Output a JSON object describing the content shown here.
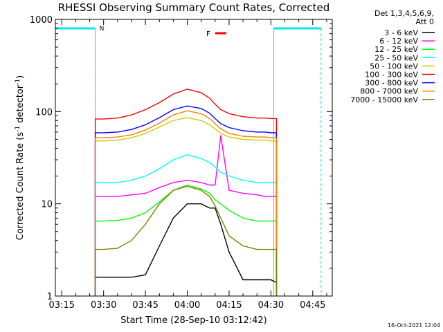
{
  "chart_data": {
    "type": "line",
    "title": "RHESSI Observing Summary Count Rates, Corrected",
    "xlabel": "Start Time (28-Sep-10 03:12:42)",
    "ylabel_main": "Corrected Count Rate (s",
    "ylabel_exp1": "-1",
    "ylabel_mid": " detector",
    "ylabel_exp2": "-1",
    "ylabel_end": ")",
    "yscale": "log",
    "ylim": [
      1,
      1000
    ],
    "xlim": [
      "03:12:42",
      "04:52:00"
    ],
    "xticks": [
      "03:15",
      "03:30",
      "03:45",
      "04:00",
      "04:15",
      "04:30",
      "04:45"
    ],
    "yticks": [
      "1",
      "10",
      "100",
      "1000"
    ],
    "legend_header": [
      "Det 1,3,4,5,6,9,",
      "Att 0"
    ],
    "legend_position": "outside-right",
    "flags": {
      "night_label": "N",
      "flare_label": "F",
      "night_color": "#00e5ee",
      "flare_color": "#ff0000",
      "night_periods": [
        [
          "03:12:42",
          "03:27"
        ],
        [
          "04:31",
          "04:48"
        ]
      ],
      "data_window": [
        "03:27",
        "04:32"
      ],
      "flare_period": [
        "04:10",
        "04:14"
      ]
    },
    "x": [
      "03:27",
      "03:30",
      "03:35",
      "03:40",
      "03:45",
      "03:50",
      "03:55",
      "04:00",
      "04:05",
      "04:08",
      "04:10",
      "04:12",
      "04:15",
      "04:20",
      "04:25",
      "04:28",
      "04:30",
      "04:32"
    ],
    "series": [
      {
        "name": "3 - 6 keV",
        "color": "#000000",
        "values": [
          1.6,
          1.6,
          1.6,
          1.6,
          1.7,
          3.5,
          7,
          10,
          10,
          9,
          9,
          6,
          3,
          1.5,
          1.5,
          1.5,
          1.5,
          1.4
        ]
      },
      {
        "name": "6 - 12 keV",
        "color": "#ff00ff",
        "values": [
          12,
          12,
          12,
          12.5,
          13,
          15,
          17,
          18,
          17,
          16,
          16,
          55,
          14,
          13,
          12.5,
          12,
          12,
          12
        ]
      },
      {
        "name": "12 - 25 keV",
        "color": "#00ff00",
        "values": [
          6.5,
          6.5,
          6.6,
          7,
          8,
          10.5,
          14,
          16,
          14.5,
          13,
          11,
          10,
          8.5,
          7,
          6.5,
          6.5,
          6.5,
          6.5
        ]
      },
      {
        "name": "25 - 50 keV",
        "color": "#00ffff",
        "values": [
          17,
          17,
          17,
          18,
          20,
          24,
          30,
          34,
          31,
          28,
          25,
          22,
          20,
          18,
          17,
          17,
          17,
          17
        ]
      },
      {
        "name": "50 - 100 keV",
        "color": "#cccc00",
        "values": [
          48,
          48,
          49,
          52,
          58,
          68,
          80,
          86,
          80,
          72,
          65,
          58,
          53,
          50,
          49,
          49,
          48,
          48
        ]
      },
      {
        "name": "100 - 300 keV",
        "color": "#ff0000",
        "values": [
          83,
          83,
          85,
          92,
          105,
          125,
          155,
          175,
          160,
          140,
          120,
          105,
          95,
          88,
          85,
          85,
          84,
          84
        ]
      },
      {
        "name": "300 - 800 keV",
        "color": "#0000ff",
        "values": [
          59,
          59,
          60,
          64,
          72,
          86,
          105,
          115,
          108,
          96,
          84,
          74,
          67,
          62,
          60,
          60,
          59,
          59
        ]
      },
      {
        "name": "800 - 7000 keV",
        "color": "#ff8000",
        "values": [
          52,
          52,
          53,
          56,
          63,
          75,
          92,
          102,
          95,
          84,
          74,
          65,
          58,
          54,
          53,
          53,
          52,
          52
        ]
      },
      {
        "name": "7000 - 15000 keV",
        "color": "#808000",
        "values": [
          3.2,
          3.2,
          3.3,
          4,
          6,
          10,
          14,
          15.5,
          14,
          12,
          9.5,
          7,
          4.5,
          3.5,
          3.2,
          3.2,
          3.2,
          3.2
        ]
      }
    ]
  },
  "timestamp": "16-Oct-2021 12:04"
}
